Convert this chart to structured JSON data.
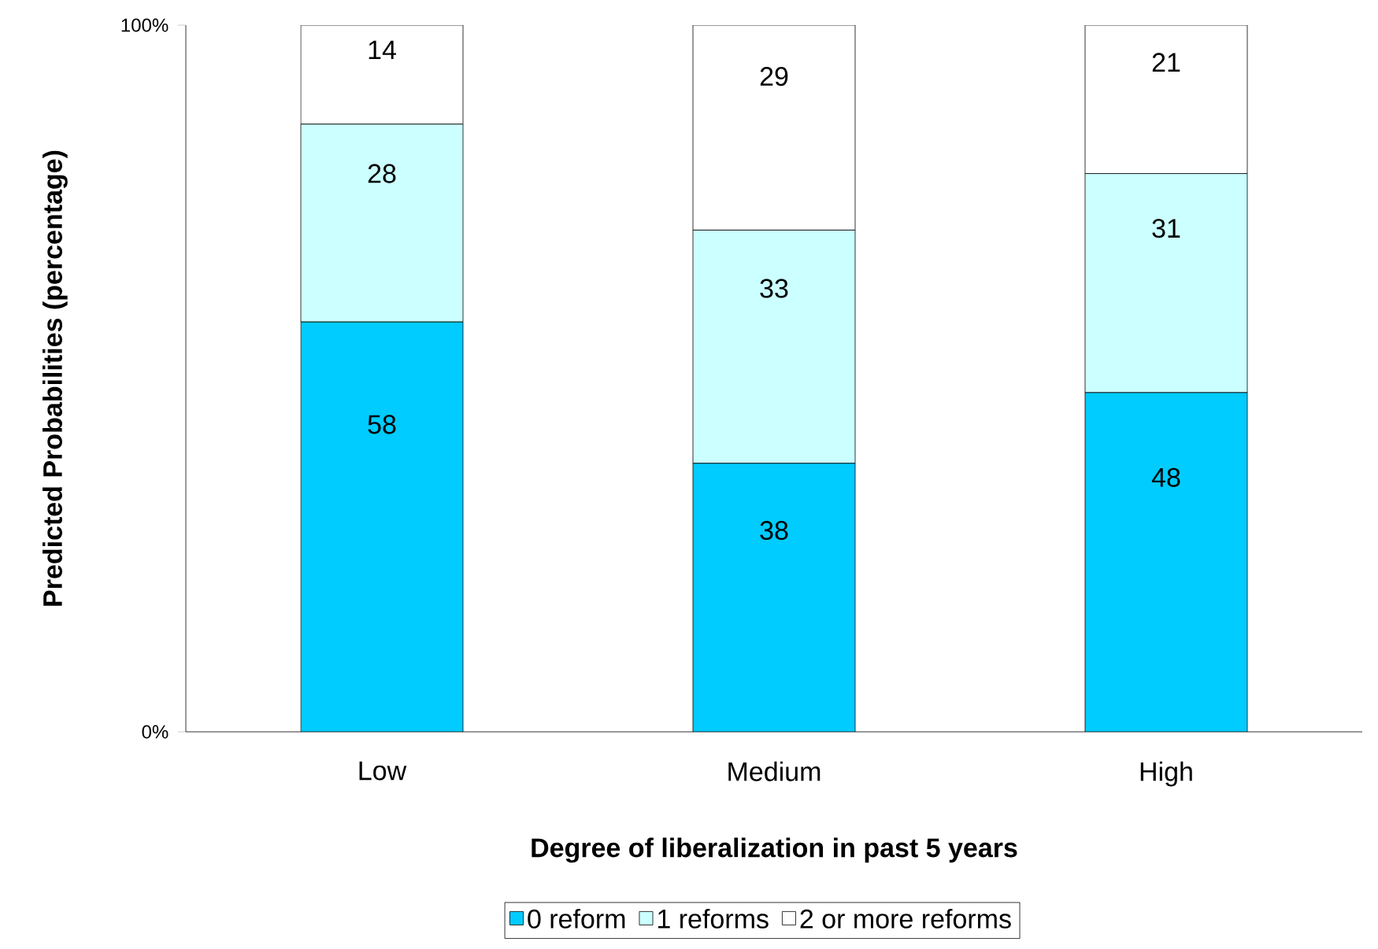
{
  "chart_data": {
    "type": "bar",
    "stacked": true,
    "xlabel": "Degree of liberalization in past 5 years",
    "ylabel": "Predicted Probabilities  (percentage)",
    "categories": [
      "Low",
      "Medium",
      "High"
    ],
    "series": [
      {
        "name": "0 reform",
        "color": "#00ccff",
        "values": [
          58,
          38,
          48
        ]
      },
      {
        "name": "1 reforms",
        "color": "#ccffff",
        "values": [
          28,
          33,
          31
        ]
      },
      {
        "name": "2 or more reforms",
        "color": "#ffffff",
        "values": [
          14,
          29,
          21
        ]
      }
    ],
    "ylim": [
      0,
      100
    ],
    "yticks": [
      {
        "value": 0,
        "label": "0%"
      },
      {
        "value": 100,
        "label": "100%"
      }
    ],
    "data_labels": true,
    "legend": "bottom",
    "grid": false
  }
}
